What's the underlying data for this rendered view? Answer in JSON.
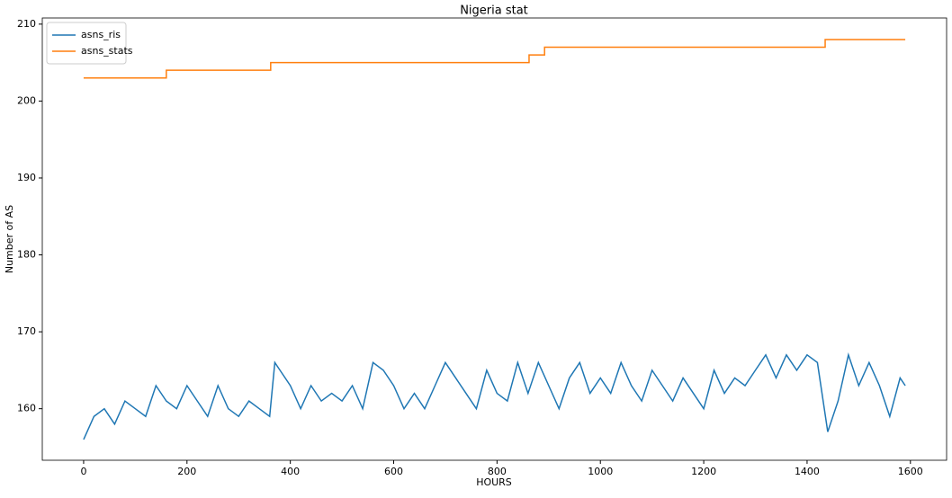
{
  "chart_data": {
    "type": "line",
    "title": "Nigeria stat",
    "x_label": "HOURS",
    "y_label": "Number of AS",
    "xlim": [
      -80,
      1670
    ],
    "ylim": [
      153.3,
      210.8
    ],
    "xticks": [
      0,
      200,
      400,
      600,
      800,
      1000,
      1200,
      1400,
      1600
    ],
    "yticks": [
      160,
      170,
      180,
      190,
      200,
      210
    ],
    "grid": false,
    "legend": "upper left",
    "series": [
      {
        "name": "asns_ris",
        "color": "#1f77b4",
        "x": [
          0,
          20,
          40,
          60,
          80,
          100,
          120,
          140,
          160,
          180,
          200,
          220,
          240,
          260,
          280,
          300,
          320,
          340,
          360,
          370,
          380,
          400,
          420,
          440,
          460,
          480,
          500,
          520,
          540,
          560,
          580,
          600,
          620,
          640,
          660,
          680,
          700,
          720,
          740,
          760,
          780,
          800,
          820,
          840,
          860,
          880,
          900,
          920,
          940,
          960,
          980,
          1000,
          1020,
          1040,
          1060,
          1080,
          1100,
          1120,
          1140,
          1160,
          1180,
          1200,
          1220,
          1240,
          1260,
          1280,
          1300,
          1320,
          1340,
          1360,
          1380,
          1400,
          1420,
          1440,
          1460,
          1480,
          1500,
          1520,
          1540,
          1560,
          1580,
          1590
        ],
        "values": [
          156,
          159,
          160,
          158,
          161,
          160,
          159,
          163,
          161,
          160,
          163,
          161,
          159,
          163,
          160,
          159,
          161,
          160,
          159,
          166,
          165,
          163,
          160,
          163,
          161,
          162,
          161,
          163,
          160,
          166,
          165,
          163,
          160,
          162,
          160,
          163,
          166,
          164,
          162,
          160,
          165,
          162,
          161,
          166,
          162,
          166,
          163,
          160,
          164,
          166,
          162,
          164,
          162,
          166,
          163,
          161,
          165,
          163,
          161,
          164,
          162,
          160,
          165,
          162,
          164,
          163,
          165,
          167,
          164,
          167,
          165,
          167,
          166,
          157,
          161,
          167,
          163,
          166,
          163,
          159,
          164,
          163
        ]
      },
      {
        "name": "asns_stats",
        "color": "#ff7f0e",
        "x": [
          0,
          160,
          160,
          362,
          362,
          862,
          862,
          892,
          892,
          1435,
          1435,
          1590
        ],
        "values": [
          203,
          203,
          204,
          204,
          205,
          205,
          206,
          206,
          207,
          207,
          208,
          208
        ]
      }
    ]
  }
}
